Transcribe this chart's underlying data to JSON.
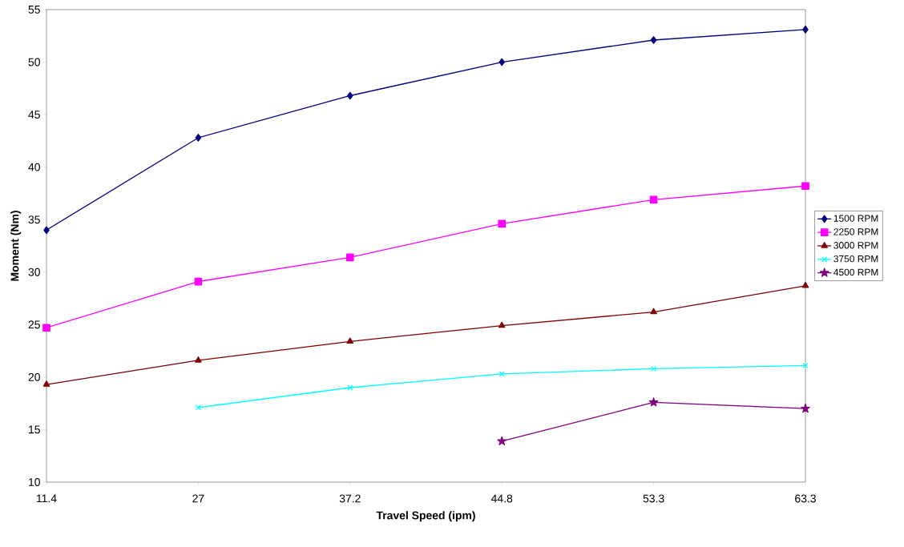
{
  "chart_data": {
    "type": "line",
    "xlabel": "Travel Speed (ipm)",
    "ylabel": "Moment (Nm)",
    "categories": [
      "11.4",
      "27",
      "37.2",
      "44.8",
      "53.3",
      "63.3"
    ],
    "ylim": [
      10,
      55
    ],
    "yticks": [
      10,
      15,
      20,
      25,
      30,
      35,
      40,
      45,
      50,
      55
    ],
    "legend": "right",
    "series": [
      {
        "name": "1500 RPM",
        "color": "#000080",
        "marker": "diamond",
        "values": [
          34.0,
          42.8,
          46.8,
          50.0,
          52.1,
          53.1
        ]
      },
      {
        "name": "2250 RPM",
        "color": "#ff00ff",
        "marker": "square",
        "values": [
          24.7,
          29.1,
          31.4,
          34.6,
          36.9,
          38.2
        ]
      },
      {
        "name": "3000 RPM",
        "color": "#800000",
        "marker": "triangle",
        "values": [
          19.3,
          21.6,
          23.4,
          24.9,
          26.2,
          28.7
        ]
      },
      {
        "name": "3750 RPM",
        "color": "#00ffff",
        "marker": "cross",
        "values": [
          null,
          17.1,
          19.0,
          20.3,
          20.8,
          21.1
        ]
      },
      {
        "name": "4500 RPM",
        "color": "#800080",
        "marker": "star",
        "values": [
          null,
          null,
          null,
          13.9,
          17.6,
          17.0
        ]
      }
    ]
  }
}
